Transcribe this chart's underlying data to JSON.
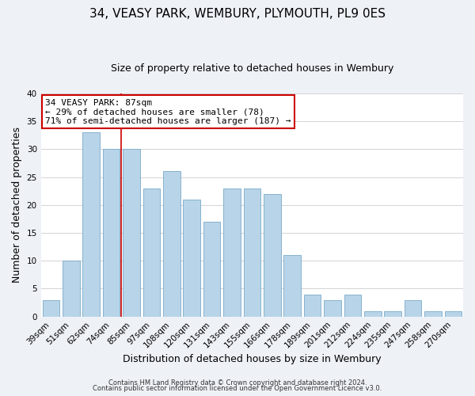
{
  "title": "34, VEASY PARK, WEMBURY, PLYMOUTH, PL9 0ES",
  "subtitle": "Size of property relative to detached houses in Wembury",
  "xlabel": "Distribution of detached houses by size in Wembury",
  "ylabel": "Number of detached properties",
  "categories": [
    "39sqm",
    "51sqm",
    "62sqm",
    "74sqm",
    "85sqm",
    "97sqm",
    "108sqm",
    "120sqm",
    "131sqm",
    "143sqm",
    "155sqm",
    "166sqm",
    "178sqm",
    "189sqm",
    "201sqm",
    "212sqm",
    "224sqm",
    "235sqm",
    "247sqm",
    "258sqm",
    "270sqm"
  ],
  "values": [
    3,
    10,
    33,
    30,
    30,
    23,
    26,
    21,
    17,
    23,
    23,
    22,
    11,
    4,
    3,
    4,
    1,
    1,
    3,
    1,
    1
  ],
  "bar_color": "#b8d4e8",
  "vline_index": 3.5,
  "vline_color": "#cc0000",
  "annotation_line1": "34 VEASY PARK: 87sqm",
  "annotation_line2": "← 29% of detached houses are smaller (78)",
  "annotation_line3": "71% of semi-detached houses are larger (187) →",
  "annotation_box_edgecolor": "#cc0000",
  "annotation_box_facecolor": "#ffffff",
  "ylim": [
    0,
    40
  ],
  "yticks": [
    0,
    5,
    10,
    15,
    20,
    25,
    30,
    35,
    40
  ],
  "footer_line1": "Contains HM Land Registry data © Crown copyright and database right 2024.",
  "footer_line2": "Contains public sector information licensed under the Open Government Licence v3.0.",
  "background_color": "#eef2f7",
  "plot_background_color": "#ffffff",
  "grid_color": "#cccccc",
  "title_fontsize": 11,
  "subtitle_fontsize": 9,
  "tick_fontsize": 7.5,
  "ylabel_fontsize": 9,
  "xlabel_fontsize": 9,
  "footer_fontsize": 6,
  "annotation_fontsize": 8
}
